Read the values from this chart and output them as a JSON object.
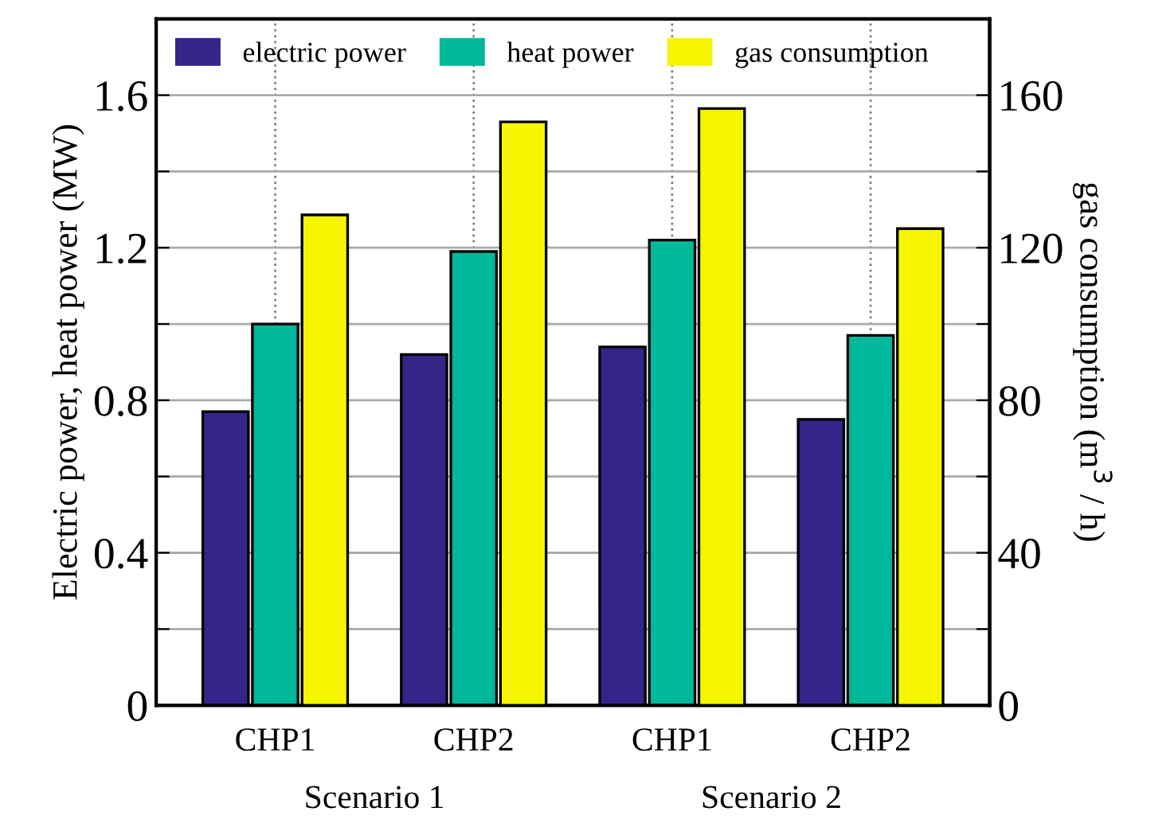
{
  "chart_data": {
    "type": "bar",
    "categories": [
      "CHP1",
      "CHP2",
      "CHP1",
      "CHP2"
    ],
    "series": [
      {
        "name": "electric power",
        "color": "#34258a",
        "values": [
          0.77,
          0.92,
          0.94,
          0.75
        ]
      },
      {
        "name": "heat power",
        "color": "#00b89a",
        "values": [
          1.0,
          1.19,
          1.22,
          0.97
        ]
      },
      {
        "name": "gas consumption",
        "color": "#f5f500",
        "values": [
          128.6,
          153,
          156.5,
          125
        ],
        "axis": "y2"
      }
    ],
    "ylabel": "Electric power, heat power (MW)",
    "y2label": "gas consumption (m$^{3}$ / h)",
    "ylim": [
      0,
      1.8
    ],
    "yticks": [
      0,
      {
        "value": 0.2,
        "label": null
      },
      0.4,
      {
        "value": 0.6,
        "label": null
      },
      0.8,
      {
        "value": 1.0,
        "label": null
      },
      1.2,
      {
        "value": 1.4,
        "label": null
      },
      1.6
    ],
    "y2lim": [
      0,
      180
    ],
    "y2ticks": [
      0,
      {
        "value": 20,
        "label": null
      },
      40,
      {
        "value": 60,
        "label": null
      },
      80,
      {
        "value": 100,
        "label": null
      },
      120,
      {
        "value": 140,
        "label": null
      },
      160
    ],
    "annotations": [
      "Scenario 1",
      "Scenario 2"
    ],
    "grid": true,
    "legend": "top left"
  }
}
